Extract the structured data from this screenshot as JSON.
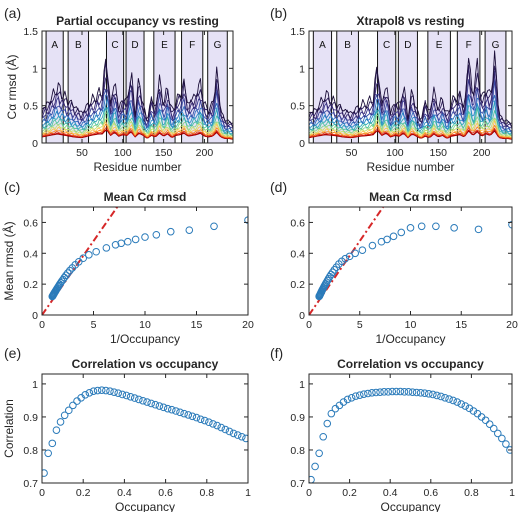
{
  "chart_data": [
    {
      "panel": "(a)",
      "type": "line",
      "title": "Partial occupancy vs resting",
      "xlabel": "Residue number",
      "ylabel": "Cα rmsd (Å)",
      "xlim": [
        1,
        235
      ],
      "ylim": [
        0,
        1.5
      ],
      "xticks": [
        50,
        100,
        150,
        200
      ],
      "yticks": [
        0,
        0.5,
        1,
        1.5
      ],
      "ytick_labels": [
        "0",
        "0.5",
        "1",
        "1.5"
      ],
      "bands": [
        {
          "label": "A",
          "from": 6,
          "to": 27
        },
        {
          "label": "B",
          "from": 33,
          "to": 58
        },
        {
          "label": "C",
          "from": 80,
          "to": 101
        },
        {
          "label": "D",
          "from": 104,
          "to": 126
        },
        {
          "label": "E",
          "from": 138,
          "to": 164
        },
        {
          "label": "F",
          "from": 172,
          "to": 198
        },
        {
          "label": "G",
          "from": 204,
          "to": 228
        }
      ],
      "n_series": 16,
      "envelope": {
        "x": [
          1,
          10,
          20,
          30,
          40,
          50,
          60,
          70,
          75,
          80,
          85,
          90,
          95,
          100,
          105,
          110,
          115,
          120,
          125,
          130,
          135,
          140,
          145,
          150,
          155,
          160,
          165,
          170,
          175,
          180,
          185,
          190,
          195,
          200,
          205,
          210,
          215,
          220,
          225,
          230,
          235
        ],
        "top": [
          0.45,
          0.55,
          0.75,
          0.6,
          0.5,
          0.4,
          0.55,
          0.65,
          0.7,
          1.15,
          0.5,
          0.85,
          0.45,
          0.6,
          0.55,
          0.95,
          0.4,
          0.85,
          0.5,
          0.3,
          0.6,
          0.45,
          0.85,
          0.5,
          0.75,
          0.4,
          0.55,
          0.65,
          0.8,
          0.5,
          0.6,
          0.65,
          0.8,
          0.5,
          0.45,
          0.5,
          0.95,
          0.45,
          0.3,
          0.3,
          0.25
        ],
        "bottom": [
          0.08,
          0.1,
          0.12,
          0.1,
          0.08,
          0.07,
          0.1,
          0.12,
          0.12,
          0.18,
          0.1,
          0.14,
          0.09,
          0.11,
          0.1,
          0.15,
          0.08,
          0.13,
          0.1,
          0.06,
          0.1,
          0.08,
          0.13,
          0.09,
          0.12,
          0.07,
          0.1,
          0.11,
          0.13,
          0.09,
          0.1,
          0.11,
          0.13,
          0.09,
          0.08,
          0.09,
          0.14,
          0.08,
          0.06,
          0.06,
          0.05
        ]
      }
    },
    {
      "panel": "(b)",
      "type": "line",
      "title": "Xtrapol8 vs resting",
      "xlabel": "Residue number",
      "ylabel": "",
      "xlim": [
        1,
        235
      ],
      "ylim": [
        0,
        1.5
      ],
      "xticks": [
        50,
        100,
        150,
        200
      ],
      "yticks": [
        0,
        0.5,
        1,
        1.5
      ],
      "ytick_labels": [
        "0",
        "0.5",
        "1",
        "1.5"
      ],
      "bands": [
        {
          "label": "A",
          "from": 6,
          "to": 27
        },
        {
          "label": "B",
          "from": 33,
          "to": 58
        },
        {
          "label": "C",
          "from": 80,
          "to": 101
        },
        {
          "label": "D",
          "from": 104,
          "to": 126
        },
        {
          "label": "E",
          "from": 138,
          "to": 164
        },
        {
          "label": "F",
          "from": 172,
          "to": 198
        },
        {
          "label": "G",
          "from": 204,
          "to": 228
        }
      ],
      "n_series": 16,
      "envelope": {
        "x": [
          1,
          10,
          20,
          30,
          40,
          50,
          60,
          70,
          75,
          80,
          85,
          90,
          95,
          100,
          105,
          110,
          115,
          120,
          125,
          130,
          135,
          140,
          145,
          150,
          155,
          160,
          165,
          170,
          175,
          180,
          185,
          190,
          195,
          200,
          205,
          210,
          215,
          220,
          225,
          230,
          235
        ],
        "top": [
          0.4,
          0.45,
          0.65,
          0.55,
          0.45,
          0.4,
          0.5,
          0.55,
          0.6,
          1.05,
          0.5,
          0.8,
          0.4,
          0.55,
          0.5,
          0.75,
          0.35,
          0.7,
          0.45,
          0.3,
          0.55,
          0.4,
          0.7,
          0.45,
          0.6,
          0.35,
          0.55,
          0.6,
          0.65,
          0.45,
          1.15,
          0.6,
          1.05,
          0.55,
          0.75,
          0.6,
          1.15,
          0.4,
          0.3,
          0.3,
          0.25
        ],
        "bottom": [
          0.07,
          0.09,
          0.11,
          0.1,
          0.08,
          0.07,
          0.09,
          0.1,
          0.11,
          0.17,
          0.1,
          0.13,
          0.08,
          0.1,
          0.09,
          0.13,
          0.07,
          0.12,
          0.09,
          0.06,
          0.09,
          0.07,
          0.12,
          0.08,
          0.1,
          0.06,
          0.09,
          0.1,
          0.11,
          0.08,
          0.16,
          0.1,
          0.15,
          0.09,
          0.12,
          0.1,
          0.16,
          0.07,
          0.06,
          0.06,
          0.05
        ]
      }
    },
    {
      "panel": "(c)",
      "type": "scatter",
      "title": "Mean Cα rmsd",
      "xlabel": "1/Occupancy",
      "ylabel": "Mean rmsd (Å)",
      "xlim": [
        0,
        20
      ],
      "ylim": [
        0,
        0.7
      ],
      "xticks": [
        0,
        5,
        10,
        15,
        20
      ],
      "yticks": [
        0,
        0.2,
        0.4,
        0.6
      ],
      "ytick_labels": [
        "0",
        "0.2",
        "0.4",
        "0.6"
      ],
      "x": [
        1.0,
        1.03,
        1.06,
        1.09,
        1.12,
        1.15,
        1.19,
        1.23,
        1.27,
        1.32,
        1.37,
        1.43,
        1.49,
        1.56,
        1.64,
        1.72,
        1.82,
        1.92,
        2.04,
        2.17,
        2.33,
        2.5,
        2.7,
        2.94,
        3.23,
        3.57,
        4.0,
        4.55,
        5.26,
        6.25,
        7.14,
        7.69,
        8.33,
        9.09,
        10.0,
        11.1,
        12.5,
        14.3,
        16.7,
        20.0
      ],
      "y": [
        0.12,
        0.123,
        0.126,
        0.13,
        0.133,
        0.137,
        0.141,
        0.146,
        0.15,
        0.156,
        0.161,
        0.168,
        0.174,
        0.182,
        0.19,
        0.199,
        0.209,
        0.219,
        0.23,
        0.243,
        0.257,
        0.272,
        0.288,
        0.305,
        0.325,
        0.345,
        0.368,
        0.39,
        0.41,
        0.435,
        0.455,
        0.465,
        0.475,
        0.49,
        0.505,
        0.52,
        0.54,
        0.55,
        0.575,
        0.615
      ],
      "trend": {
        "x": [
          0,
          7.3
        ],
        "y": [
          0,
          0.7
        ],
        "color": "#d62728"
      },
      "marker_color": "#2b7bba"
    },
    {
      "panel": "(d)",
      "type": "scatter",
      "title": "Mean Cα rmsd",
      "xlabel": "1/Occupancy",
      "ylabel": "",
      "xlim": [
        0,
        20
      ],
      "ylim": [
        0,
        0.7
      ],
      "xticks": [
        0,
        5,
        10,
        15,
        20
      ],
      "yticks": [
        0,
        0.2,
        0.4,
        0.6
      ],
      "ytick_labels": [
        "0",
        "0.2",
        "0.4",
        "0.6"
      ],
      "x": [
        1.0,
        1.03,
        1.06,
        1.09,
        1.12,
        1.15,
        1.19,
        1.23,
        1.27,
        1.32,
        1.37,
        1.43,
        1.49,
        1.56,
        1.64,
        1.72,
        1.82,
        1.92,
        2.04,
        2.17,
        2.33,
        2.5,
        2.7,
        2.94,
        3.23,
        3.57,
        4.0,
        4.55,
        5.26,
        6.25,
        7.14,
        7.69,
        8.33,
        9.09,
        10.0,
        11.1,
        12.5,
        14.3,
        16.7,
        20.0
      ],
      "y": [
        0.12,
        0.124,
        0.128,
        0.132,
        0.136,
        0.141,
        0.146,
        0.151,
        0.157,
        0.163,
        0.17,
        0.177,
        0.185,
        0.193,
        0.202,
        0.212,
        0.223,
        0.235,
        0.248,
        0.262,
        0.277,
        0.293,
        0.31,
        0.33,
        0.348,
        0.365,
        0.38,
        0.4,
        0.42,
        0.45,
        0.475,
        0.49,
        0.51,
        0.535,
        0.565,
        0.575,
        0.575,
        0.565,
        0.555,
        0.585
      ],
      "trend": {
        "x": [
          0,
          7.3
        ],
        "y": [
          0,
          0.7
        ],
        "color": "#d62728"
      },
      "marker_color": "#2b7bba"
    },
    {
      "panel": "(e)",
      "type": "scatter",
      "title": "Correlation vs occupancy",
      "xlabel": "Occupancy",
      "ylabel": "Correlation",
      "xlim": [
        0,
        1
      ],
      "ylim": [
        0.7,
        1.03
      ],
      "xticks": [
        0,
        0.2,
        0.4,
        0.6,
        0.8,
        1
      ],
      "xtick_labels": [
        "0",
        "0.2",
        "0.4",
        "0.6",
        "0.8",
        "1"
      ],
      "yticks": [
        0.7,
        0.8,
        0.9,
        1.0
      ],
      "ytick_labels": [
        "0.7",
        "0.8",
        "0.9",
        "1"
      ],
      "x": [
        0.01,
        0.03,
        0.05,
        0.07,
        0.09,
        0.11,
        0.13,
        0.15,
        0.17,
        0.19,
        0.21,
        0.23,
        0.25,
        0.27,
        0.29,
        0.31,
        0.33,
        0.35,
        0.37,
        0.39,
        0.41,
        0.43,
        0.45,
        0.47,
        0.49,
        0.51,
        0.53,
        0.55,
        0.57,
        0.59,
        0.61,
        0.63,
        0.65,
        0.67,
        0.69,
        0.71,
        0.73,
        0.75,
        0.77,
        0.79,
        0.81,
        0.83,
        0.85,
        0.87,
        0.89,
        0.91,
        0.93,
        0.95,
        0.97,
        0.99
      ],
      "y": [
        0.73,
        0.79,
        0.82,
        0.86,
        0.885,
        0.905,
        0.92,
        0.935,
        0.948,
        0.958,
        0.967,
        0.973,
        0.978,
        0.98,
        0.981,
        0.98,
        0.978,
        0.975,
        0.972,
        0.968,
        0.965,
        0.961,
        0.957,
        0.953,
        0.949,
        0.945,
        0.941,
        0.937,
        0.933,
        0.929,
        0.925,
        0.922,
        0.918,
        0.914,
        0.91,
        0.906,
        0.902,
        0.898,
        0.893,
        0.889,
        0.884,
        0.879,
        0.874,
        0.868,
        0.862,
        0.856,
        0.85,
        0.845,
        0.84,
        0.835
      ],
      "marker_color": "#2b7bba"
    },
    {
      "panel": "(f)",
      "type": "scatter",
      "title": "Correlation vs occupancy",
      "xlabel": "Occupancy",
      "ylabel": "",
      "xlim": [
        0,
        1
      ],
      "ylim": [
        0.7,
        1.03
      ],
      "xticks": [
        0,
        0.2,
        0.4,
        0.6,
        0.8,
        1
      ],
      "xtick_labels": [
        "0",
        "0.2",
        "0.4",
        "0.6",
        "0.8",
        "1"
      ],
      "yticks": [
        0.7,
        0.8,
        0.9,
        1.0
      ],
      "ytick_labels": [
        "0.7",
        "0.8",
        "0.9",
        "1"
      ],
      "x": [
        0.01,
        0.03,
        0.05,
        0.07,
        0.09,
        0.11,
        0.13,
        0.15,
        0.17,
        0.19,
        0.21,
        0.23,
        0.25,
        0.27,
        0.29,
        0.31,
        0.33,
        0.35,
        0.37,
        0.39,
        0.41,
        0.43,
        0.45,
        0.47,
        0.49,
        0.51,
        0.53,
        0.55,
        0.57,
        0.59,
        0.61,
        0.63,
        0.65,
        0.67,
        0.69,
        0.71,
        0.73,
        0.75,
        0.77,
        0.79,
        0.81,
        0.83,
        0.85,
        0.87,
        0.89,
        0.91,
        0.93,
        0.95,
        0.97,
        0.99
      ],
      "y": [
        0.71,
        0.75,
        0.79,
        0.84,
        0.88,
        0.91,
        0.925,
        0.935,
        0.945,
        0.953,
        0.958,
        0.963,
        0.966,
        0.969,
        0.971,
        0.973,
        0.974,
        0.975,
        0.976,
        0.976,
        0.977,
        0.977,
        0.977,
        0.976,
        0.976,
        0.975,
        0.974,
        0.973,
        0.972,
        0.97,
        0.968,
        0.965,
        0.962,
        0.958,
        0.954,
        0.95,
        0.945,
        0.939,
        0.933,
        0.926,
        0.918,
        0.91,
        0.9,
        0.89,
        0.878,
        0.865,
        0.85,
        0.835,
        0.818,
        0.8
      ],
      "marker_color": "#2b7bba"
    }
  ]
}
